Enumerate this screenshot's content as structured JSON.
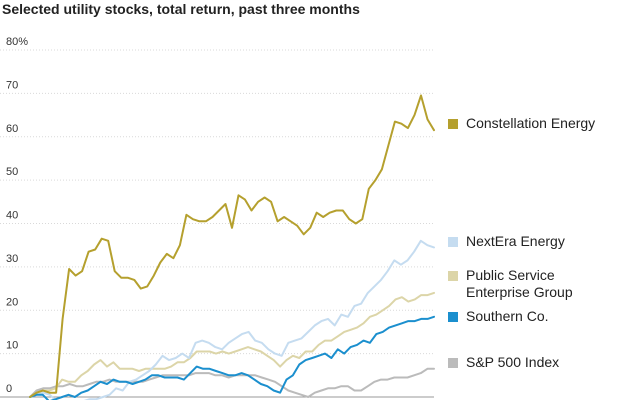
{
  "chart_data": {
    "type": "line",
    "title": "Selected utility stocks, total return, past three months",
    "xlabel": "",
    "ylabel": "",
    "ylim": [
      0,
      80
    ],
    "yticks": [
      0,
      10,
      20,
      30,
      40,
      50,
      60,
      70,
      80
    ],
    "ytick_labels": [
      "0",
      "10",
      "20",
      "30",
      "40",
      "50",
      "60",
      "70",
      "80%"
    ],
    "grid": true,
    "legend_position": "right",
    "series": [
      {
        "name": "Constellation Energy",
        "color": "#b5a02e",
        "values": [
          0,
          1,
          1.5,
          1,
          1,
          18,
          29.5,
          28,
          29,
          33.5,
          34,
          36.5,
          36,
          29,
          27.5,
          27.5,
          27,
          25,
          25.5,
          28,
          31,
          33,
          32,
          35,
          42,
          41,
          40.5,
          40.5,
          41.5,
          43,
          44.5,
          39,
          46.5,
          45.5,
          43,
          45,
          46,
          45,
          40.5,
          41.5,
          40.5,
          39.5,
          37.5,
          39,
          42.5,
          41.5,
          42.5,
          43,
          43,
          41,
          40,
          41,
          48,
          50,
          52.5,
          58,
          63.5,
          63,
          62,
          65,
          69.5,
          64,
          61.5
        ]
      },
      {
        "name": "NextEra Energy",
        "color": "#c5dcf0",
        "values": [
          0,
          0.5,
          1,
          0.5,
          -1,
          -1.5,
          -1.5,
          -1.5,
          -1,
          -0.5,
          -0.5,
          0,
          0.5,
          2,
          1.5,
          3.5,
          4,
          5,
          6,
          7.5,
          9.5,
          8.5,
          9,
          10,
          9,
          12.5,
          13,
          12.5,
          11.5,
          11,
          12.5,
          13.5,
          14.5,
          15,
          13,
          12.5,
          11,
          10,
          9.5,
          12.5,
          13,
          13.5,
          15,
          16.5,
          17.5,
          18,
          16.5,
          19,
          18.5,
          21,
          21.5,
          24,
          25.5,
          27,
          29,
          31.5,
          30.5,
          31.5,
          33.5,
          36,
          35,
          34.5
        ]
      },
      {
        "name": "Public Service\nEnterprise Group",
        "color": "#dcd5a8",
        "values": [
          0,
          1,
          1.5,
          1.5,
          2,
          4,
          3.5,
          3.5,
          5,
          6,
          7.5,
          8.5,
          7,
          8,
          6.5,
          6.5,
          6.5,
          6,
          6.5,
          6.5,
          6.5,
          6.5,
          7,
          8,
          8,
          9,
          10.5,
          10.5,
          10.5,
          10,
          10.5,
          10,
          10.5,
          11,
          11.5,
          11,
          10.5,
          9.5,
          8.5,
          7,
          8.5,
          9.5,
          9,
          10.5,
          10.5,
          12,
          13,
          13,
          14,
          15,
          15.5,
          16,
          17,
          18.5,
          19,
          20,
          21,
          22.5,
          23,
          22,
          22.5,
          23.5,
          23.5,
          24
        ]
      },
      {
        "name": "Southern Co.",
        "color": "#1b8fce",
        "values": [
          0,
          0.5,
          0.5,
          -1,
          -0.5,
          0,
          0.5,
          0,
          1,
          1.5,
          2.5,
          3.5,
          3,
          4,
          3.5,
          3.5,
          3,
          3.5,
          4,
          5,
          5,
          4.5,
          4.5,
          4.5,
          4,
          5.5,
          7,
          6.5,
          6.5,
          6,
          5.5,
          5,
          5,
          5.5,
          5,
          4,
          3,
          2.5,
          1.5,
          1,
          4,
          5,
          7.5,
          8.5,
          9,
          9.5,
          10,
          9,
          11,
          10,
          11.5,
          12,
          13,
          12.5,
          14.5,
          15,
          16,
          16.5,
          17,
          17.5,
          17.5,
          18,
          18,
          18.5
        ]
      },
      {
        "name": "S&P 500 Index",
        "color": "#bbbbbb",
        "values": [
          0,
          1.5,
          2,
          2,
          2.5,
          2.5,
          3,
          2.5,
          2.5,
          3,
          3.5,
          3.5,
          4,
          3.5,
          3.5,
          3.5,
          3.5,
          3.5,
          4,
          4.5,
          5,
          5,
          5,
          5,
          5,
          5.5,
          5.5,
          5.5,
          5,
          5,
          4.5,
          5,
          5,
          5,
          5,
          4.5,
          4,
          3.5,
          2.5,
          1.5,
          1,
          0.5,
          0,
          1,
          1.5,
          2,
          2,
          2.5,
          2.5,
          1.5,
          1.5,
          2.5,
          3.5,
          4,
          4,
          4.5,
          4.5,
          4.5,
          5,
          5.5,
          6.5,
          6.5
        ]
      }
    ]
  }
}
